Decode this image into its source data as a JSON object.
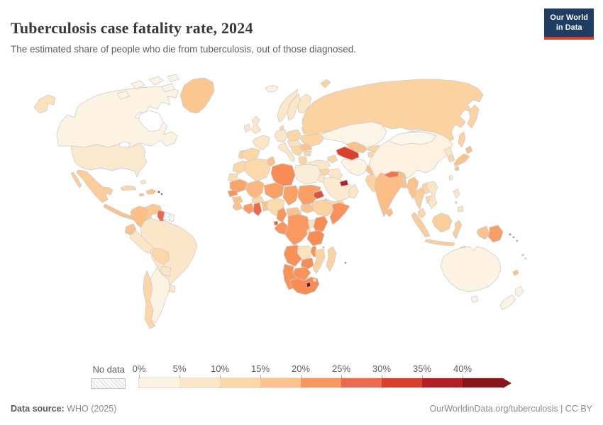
{
  "header": {
    "title": "Tuberculosis case fatality rate, 2024",
    "subtitle": "The estimated share of people who die from tuberculosis, out of those diagnosed.",
    "logo": {
      "line1": "Our World",
      "line2": "in Data"
    }
  },
  "legend": {
    "no_data_label": "No data",
    "tick_labels": [
      "0%",
      "5%",
      "10%",
      "15%",
      "20%",
      "25%",
      "30%",
      "35%",
      "40%"
    ],
    "colors": [
      "#fdf3e3",
      "#fbe7c8",
      "#fbd7a7",
      "#fbc28c",
      "#f9955e",
      "#ec6a4c",
      "#d93f2b",
      "#b31f24",
      "#871418"
    ]
  },
  "footer": {
    "source_label": "Data source:",
    "source_value": " WHO (2025)",
    "right_text": "OurWorldinData.org/tuberculosis | CC BY"
  },
  "map": {
    "border_color": "#c9c9c9",
    "countries": {
      "canada": "#fdf3e3",
      "alaska": "#fbe2bd",
      "usa": "#fbe9cd",
      "greenland": "#fbc68f",
      "mexico": "#fbcd9b",
      "baja": "#fbcd9b",
      "central_america": "#fbc28c",
      "cuba": "#fbd7a7",
      "hispaniola": "#fbc28c",
      "jamaica": "#fbc28c",
      "bahamas": "#fbe7c8",
      "antilles": "#8f0e13",
      "colombia": "#fbbf87",
      "venezuela": "#fbc994",
      "guyana": "#ec6a4c",
      "suriname": "url(#hatch)",
      "french_guiana": "url(#hatch)",
      "ecuador": "#fbc28c",
      "peru": "#fbe7c8",
      "brazil": "#fbe7c8",
      "bolivia": "#fbd7a7",
      "paraguay": "#fbe7c8",
      "uruguay": "#fbe7c8",
      "chile": "#fbd7a7",
      "argentina": "#fdf3e3",
      "iceland": "#fdf3e3",
      "uk": "#fbe7c8",
      "ireland": "#fbe7c8",
      "norway": "#fbe7c8",
      "sweden": "#fbe7c8",
      "finland": "#fbe7c8",
      "denmark": "#fbd7a7",
      "germany": "#fbe7c8",
      "france": "#fbe7c8",
      "spain": "#fbd7a7",
      "portugal": "#fbd2a0",
      "italy": "#fbe7c8",
      "central_europe": "#fbe0bb",
      "poland": "#fbd7a7",
      "baltics": "#fbd7a7",
      "belarus": "#fbd7a7",
      "ukraine": "#fbd4a1",
      "romania": "#fbc28c",
      "balkans": "#fbd7a7",
      "greece": "#fbd2a0",
      "bulgaria": "#fbd7a7",
      "turkey": "#fbe7c8",
      "caucasus": "#fbd7a7",
      "russia": "#fbd2a0",
      "kamchatka": "#fbd2a0",
      "sakhalin": "#fbd2a0",
      "novaya_zemlya": "#fbd2a0",
      "kazakhstan": "#fdf4e8",
      "uzbekistan": "#fbc28c",
      "turkmenistan": "#d93f2b",
      "kyrgyzstan": "#fbd7a7",
      "tajikistan": "#fbd7a7",
      "syria": "#fbd7a7",
      "iraq": "#fbe7c8",
      "israel_jordan": "#fbe7c8",
      "saudi_arabia": "#fbeacf",
      "yemen": "#fbd7a7",
      "oman": "#fbe7c8",
      "uae": "#b31f24",
      "iran": "#fdf3e3",
      "afghanistan": "#fbc28c",
      "pakistan": "#fbd2a0",
      "india": "#fbbe85",
      "nepal": "#f3744c",
      "bhutan": "#fbc28c",
      "bangladesh": "#fbc28c",
      "sri_lanka": "#fbbe85",
      "myanmar": "#fbc28c",
      "thailand": "#fbcd9b",
      "laos": "#fbd7a7",
      "cambodia": "#fbd7a7",
      "vietnam": "#fbe7c8",
      "malaysia": "#fbd7a7",
      "sumatra": "#fbcd9b",
      "borneo": "#fbcd9b",
      "java": "#fbcd9b",
      "sulawesi": "#fbcd9b",
      "timor": "#fbd7a7",
      "west_papua": "#fbc28c",
      "png": "#f89e66",
      "solomon": "#f08252",
      "philippines_luzon": "#fbe7c8",
      "philippines_mindanao": "#fbe7c8",
      "philippines_mid": "#fbe7c8",
      "china": "#fdf1e0",
      "mongolia": "#fdf6eb",
      "north_korea": "#fbe7c8",
      "south_korea": "#fbd7a7",
      "japan_hokkaido": "#fbc28c",
      "japan_honshu": "#fbc28c",
      "japan_kyushu": "#fbc28c",
      "taiwan": "#fbe7c8",
      "morocco": "#fbd7a7",
      "western_sahara": "#fbddb3",
      "algeria": "#fbd9ab",
      "tunisia": "#fbc28c",
      "libya": "#f88c55",
      "egypt": "#fbeed8",
      "mauritania": "#f9a469",
      "mali": "#fbb87e",
      "niger": "#f9a164",
      "chad": "#f9a164",
      "sudan": "#f99f63",
      "senegal": "#f9955e",
      "guinea": "#fbc28c",
      "sierra_leone": "#fbc28c",
      "ivory_coast": "#f99b62",
      "ghana": "#ec6a4c",
      "togo_benin": "#fbc28c",
      "burkina": "#fbd7a7",
      "nigeria": "#fbdcae",
      "cameroon": "#f9955e",
      "car": "#fbc28c",
      "south_sudan": "#fbc28c",
      "eritrea": "#e4503c",
      "djibouti": "#fbc28c",
      "ethiopia": "#fbd2a0",
      "somalia": "#f8915a",
      "uganda": "#fbe3c0",
      "kenya": "#f88c55",
      "rwanda_burundi": "#fbd7a7",
      "tanzania": "#f88c55",
      "drc": "#f9985f",
      "gabon_congo": "#f9955e",
      "eq_guinea": "#ea5a41",
      "angola": "#f89158",
      "zambia": "#fbe3bc",
      "malawi": "#f8915a",
      "mozambique": "#fbd2a0",
      "zimbabwe": "#f88c55",
      "botswana": "#f8935a",
      "namibia": "#f8935a",
      "south_africa": "#f88c55",
      "lesotho": "#8f0d10",
      "eswatini": "#fbd7a7",
      "madagascar": "#fbd2a0",
      "comoros": "#ea5a41",
      "mauritius": "#d93f2b",
      "australia": "#fdf3e3",
      "tasmania": "#fdf3e3",
      "nz_north": "#fdf3e3",
      "nz_south": "#fdf3e3",
      "fiji": "#fbc28c",
      "new_caledonia": "#fbc28c"
    }
  },
  "chart_data": {
    "type": "choropleth_map",
    "title": "Tuberculosis case fatality rate, 2024",
    "unit": "%",
    "bins": [
      "0-5%",
      "5-10%",
      "10-15%",
      "15-20%",
      "20-25%",
      "25-30%",
      "30-35%",
      "35-40%",
      "40%+",
      "No data"
    ],
    "bin_colors": [
      "#fdf3e3",
      "#fbe7c8",
      "#fbd7a7",
      "#fbc28c",
      "#f9955e",
      "#ec6a4c",
      "#d93f2b",
      "#b31f24",
      "#871418",
      "hatch"
    ],
    "legend_position": "bottom",
    "countries": {
      "Canada": "0-5%",
      "United States": "5-10%",
      "Greenland": "15-20%",
      "Mexico": "10-15%",
      "Central America": "15-20%",
      "Cuba": "10-15%",
      "Haiti/Dominican Rep.": "15-20%",
      "Lesser Antilles": "40%+",
      "Colombia": "15-20%",
      "Venezuela": "15-20%",
      "Guyana": "25-30%",
      "Suriname": "No data",
      "French Guiana": "No data",
      "Ecuador": "15-20%",
      "Peru": "5-10%",
      "Brazil": "5-10%",
      "Bolivia": "10-15%",
      "Paraguay": "5-10%",
      "Uruguay": "5-10%",
      "Chile": "10-15%",
      "Argentina": "0-5%",
      "Iceland": "0-5%",
      "United Kingdom": "5-10%",
      "Ireland": "5-10%",
      "Norway": "5-10%",
      "Sweden": "5-10%",
      "Finland": "5-10%",
      "Germany": "5-10%",
      "France": "5-10%",
      "Spain": "10-15%",
      "Portugal": "10-15%",
      "Italy": "5-10%",
      "Poland": "10-15%",
      "Ukraine": "10-15%",
      "Belarus": "10-15%",
      "Romania": "15-20%",
      "Balkans": "10-15%",
      "Greece": "10-15%",
      "Turkey": "5-10%",
      "Caucasus": "10-15%",
      "Russia": "10-15%",
      "Kazakhstan": "0-5%",
      "Uzbekistan": "15-20%",
      "Turkmenistan": "30-35%",
      "Kyrgyzstan": "10-15%",
      "Tajikistan": "10-15%",
      "Syria": "10-15%",
      "Iraq": "5-10%",
      "Israel/Jordan": "5-10%",
      "Saudi Arabia": "5-10%",
      "Yemen": "10-15%",
      "Oman": "5-10%",
      "United Arab Emirates": "35-40%",
      "Iran": "0-5%",
      "Afghanistan": "15-20%",
      "Pakistan": "10-15%",
      "India": "15-20%",
      "Nepal": "20-25%",
      "Bhutan": "15-20%",
      "Bangladesh": "15-20%",
      "Sri Lanka": "15-20%",
      "Myanmar": "15-20%",
      "Thailand": "10-15%",
      "Laos": "10-15%",
      "Cambodia": "10-15%",
      "Vietnam": "5-10%",
      "Malaysia": "10-15%",
      "Indonesia": "10-15%",
      "Timor": "10-15%",
      "Philippines": "5-10%",
      "Papua New Guinea": "20-25%",
      "Solomon Islands": "20-25%",
      "Fiji": "15-20%",
      "New Caledonia": "15-20%",
      "China": "0-5%",
      "Mongolia": "0-5%",
      "North Korea": "5-10%",
      "South Korea": "10-15%",
      "Japan": "15-20%",
      "Taiwan": "5-10%",
      "Morocco": "10-15%",
      "Western Sahara": "10-15%",
      "Algeria": "10-15%",
      "Tunisia": "15-20%",
      "Libya": "20-25%",
      "Egypt": "5-10%",
      "Mauritania": "20-25%",
      "Mali": "15-20%",
      "Niger": "20-25%",
      "Chad": "20-25%",
      "Sudan": "20-25%",
      "Senegal": "20-25%",
      "Guinea": "15-20%",
      "Sierra Leone/Liberia": "15-20%",
      "Ivory Coast": "20-25%",
      "Ghana": "25-30%",
      "Togo/Benin": "15-20%",
      "Burkina Faso": "10-15%",
      "Nigeria": "10-15%",
      "Cameroon": "20-25%",
      "Central African Rep.": "15-20%",
      "South Sudan": "15-20%",
      "Eritrea": "25-30%",
      "Djibouti": "15-20%",
      "Ethiopia": "10-15%",
      "Somalia": "20-25%",
      "Uganda": "5-10%",
      "Kenya": "20-25%",
      "Rwanda/Burundi": "10-15%",
      "Tanzania": "20-25%",
      "DR Congo": "20-25%",
      "Congo/Gabon": "20-25%",
      "Equatorial Guinea": "25-30%",
      "Angola": "20-25%",
      "Zambia": "5-10%",
      "Malawi": "20-25%",
      "Mozambique": "10-15%",
      "Zimbabwe": "20-25%",
      "Botswana": "20-25%",
      "Namibia": "20-25%",
      "South Africa": "20-25%",
      "Lesotho": "40%+",
      "Eswatini": "10-15%",
      "Madagascar": "10-15%",
      "Comoros": "25-30%",
      "Mauritius": "30-35%",
      "Australia": "0-5%",
      "New Zealand": "0-5%"
    }
  }
}
